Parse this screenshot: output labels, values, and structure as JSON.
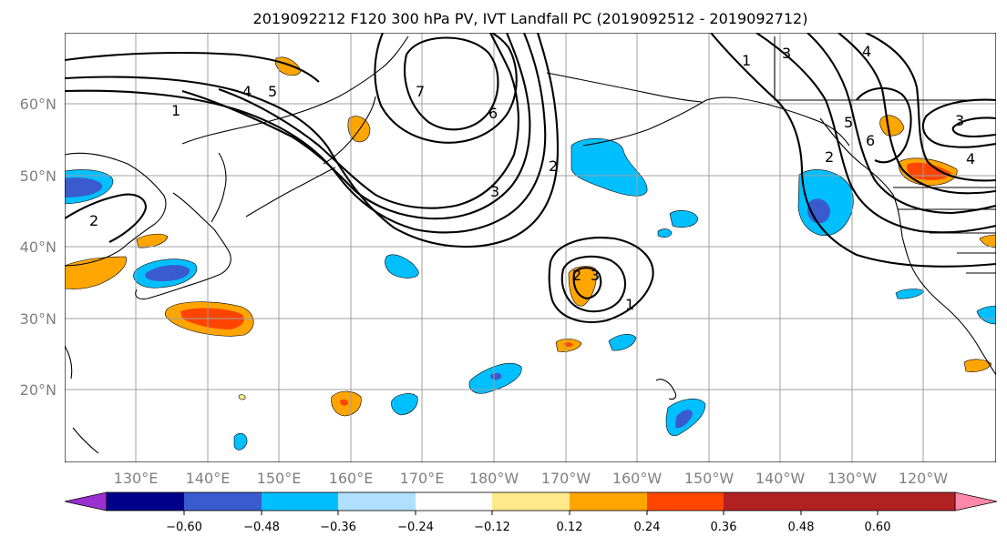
{
  "title": "2019092212 F120 300 hPa PV, IVT Landfall PC (2019092512 - 2019092712)",
  "lat_labels": [
    "60°N",
    "50°N",
    "40°N",
    "30°N",
    "20°N"
  ],
  "lon_labels": [
    "130°E",
    "140°E",
    "150°E",
    "160°E",
    "170°E",
    "180°W",
    "170°W",
    "160°W",
    "150°W",
    "140°W",
    "130°W",
    "120°W"
  ],
  "colorbar": {
    "colors": [
      "#9b30d0",
      "#00008b",
      "#3a5bcd",
      "#00bfff",
      "#b0e0ff",
      "#ffffff",
      "#ffe98a",
      "#ffa500",
      "#ff4500",
      "#b22222",
      "#ff88aa"
    ],
    "tick_labels": [
      "−0.60",
      "−0.48",
      "−0.36",
      "−0.24",
      "−0.12",
      "0.12",
      "0.24",
      "0.36",
      "0.48",
      "0.60"
    ]
  },
  "contour_labels": [
    "1",
    "2",
    "3",
    "4",
    "5",
    "6",
    "7",
    "1",
    "2",
    "3",
    "4",
    "5",
    "6",
    "2",
    "3",
    "4",
    "3",
    "2",
    "1"
  ]
}
